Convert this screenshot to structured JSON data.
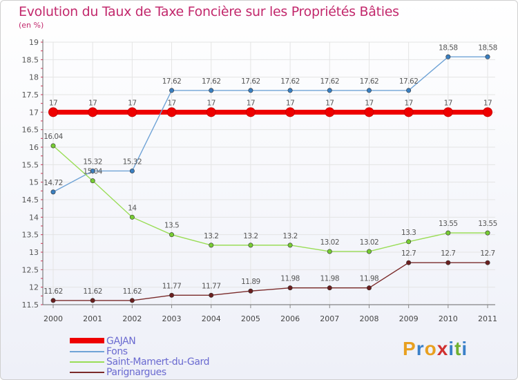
{
  "title": "Evolution du Taux de Taxe Foncière sur les Propriétés Bâties",
  "unit_label": "(en %)",
  "logo": {
    "text": "Proxiti",
    "letters": [
      "P",
      "r",
      "o",
      "x",
      "i",
      "t",
      "i"
    ],
    "colors": [
      "#e8a020",
      "#3a80c8",
      "#e8a020",
      "#d03030",
      "#3a80c8",
      "#70b030",
      "#3a80c8"
    ]
  },
  "chart_data": {
    "type": "line",
    "title": "Evolution du Taux de Taxe Foncière sur les Propriétés Bâties",
    "xlabel": "",
    "ylabel": "(en %)",
    "x": [
      "2000",
      "2001",
      "2002",
      "2003",
      "2004",
      "2005",
      "2006",
      "2007",
      "2008",
      "2009",
      "2010",
      "2011"
    ],
    "ylim": [
      11.5,
      19
    ],
    "yticks": [
      "11.5",
      "12",
      "12.5",
      "13",
      "13.5",
      "14",
      "14.5",
      "15",
      "15.5",
      "16",
      "16.5",
      "17",
      "17.5",
      "18",
      "18.5",
      "19"
    ],
    "grid": true,
    "legend_position": "bottom-left",
    "series": [
      {
        "name": "GAJAN",
        "color": "#ee0000",
        "thick": true,
        "values": [
          17,
          17,
          17,
          17,
          17,
          17,
          17,
          17,
          17,
          17,
          17,
          17
        ],
        "labels": [
          "17",
          "17",
          "17",
          "17",
          "17",
          "17",
          "17",
          "17",
          "17",
          "17",
          "17",
          "17"
        ]
      },
      {
        "name": "Fons",
        "color": "#6fa3d6",
        "marker": "#3a7fc0",
        "thick": false,
        "values": [
          14.72,
          15.32,
          15.32,
          17.62,
          17.62,
          17.62,
          17.62,
          17.62,
          17.62,
          17.62,
          18.58,
          18.58
        ],
        "labels": [
          "14.72",
          "15.32",
          "15.32",
          "17.62",
          "17.62",
          "17.62",
          "17.62",
          "17.62",
          "17.62",
          "17.62",
          "18.58",
          "18.58"
        ]
      },
      {
        "name": "Saint-Mamert-du-Gard",
        "color": "#99dd55",
        "marker": "#77cc33",
        "thick": false,
        "values": [
          16.04,
          15.04,
          14,
          13.5,
          13.2,
          13.2,
          13.2,
          13.02,
          13.02,
          13.3,
          13.55,
          13.55
        ],
        "labels": [
          "16.04",
          "15.04",
          "14",
          "13.5",
          "13.2",
          "13.2",
          "13.2",
          "13.02",
          "13.02",
          "13.3",
          "13.55",
          "13.55"
        ]
      },
      {
        "name": "Parignargues",
        "color": "#7a2a2a",
        "marker": "#6a1f1f",
        "thick": false,
        "values": [
          11.62,
          11.62,
          11.62,
          11.77,
          11.77,
          11.89,
          11.98,
          11.98,
          11.98,
          12.7,
          12.7,
          12.7
        ],
        "labels": [
          "11.62",
          "11.62",
          "11.62",
          "11.77",
          "11.77",
          "11.89",
          "11.98",
          "11.98",
          "11.98",
          "12.7",
          "12.7",
          "12.7"
        ]
      }
    ]
  }
}
